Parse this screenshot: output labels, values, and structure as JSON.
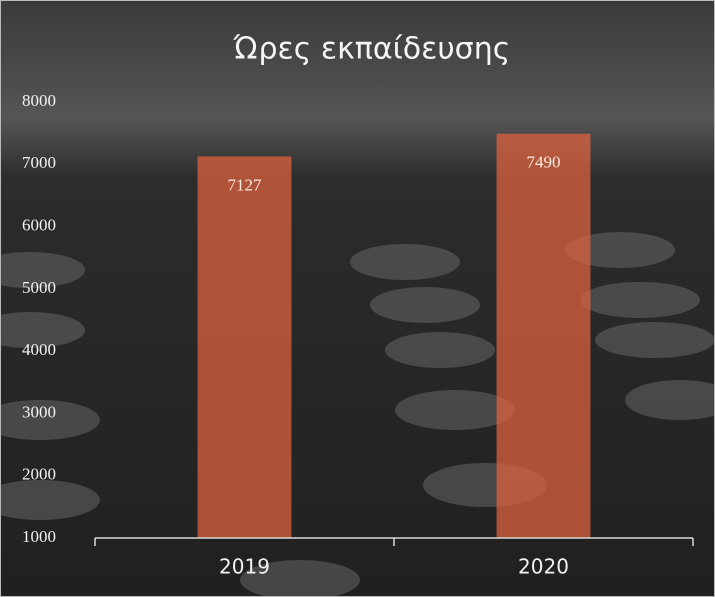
{
  "chart_data": {
    "type": "bar",
    "title": "Ώρες εκπαίδευσης",
    "categories": [
      "2019",
      "2020"
    ],
    "values": [
      7127,
      7490
    ],
    "color": "#e2643f",
    "ylim": [
      1000,
      8000
    ],
    "yticks": [
      1000,
      2000,
      3000,
      4000,
      5000,
      6000,
      7000,
      8000
    ]
  }
}
